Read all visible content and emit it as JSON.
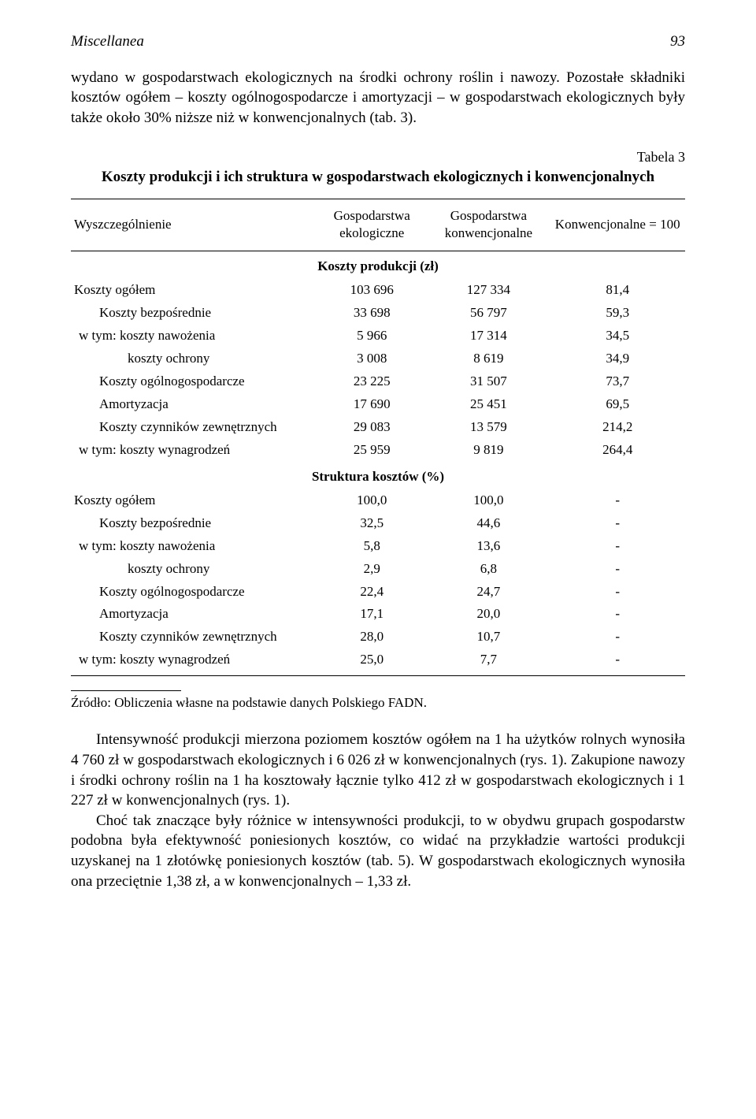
{
  "header": {
    "title": "Miscellanea",
    "page": "93"
  },
  "intro": "wydano w gospodarstwach ekologicznych na środki ochrony roślin i nawozy. Pozostałe składniki kosztów ogółem – koszty ogólnogospodarcze i amortyzacji – w gospodarstwach ekologicznych były także około 30% niższe niż w konwencjonalnych (tab. 3).",
  "table": {
    "label": "Tabela 3",
    "title": "Koszty produkcji i ich struktura w gospodarstwach ekologicznych i konwencjonalnych",
    "columns": {
      "c1": "Wyszczególnienie",
      "c2a": "Gospodarstwa",
      "c2b": "ekologiczne",
      "c3a": "Gospodarstwa",
      "c3b": "konwencjonalne",
      "c4": "Konwencjonalne = 100"
    },
    "section1": {
      "title": "Koszty produkcji (zł)",
      "rows": [
        {
          "label": "Koszty ogółem",
          "indent": "",
          "v1": "103 696",
          "v2": "127 334",
          "v3": "81,4"
        },
        {
          "label": "Koszty bezpośrednie",
          "indent": "indent1",
          "v1": "33 698",
          "v2": "56 797",
          "v3": "59,3"
        },
        {
          "label": "w tym:   koszty nawożenia",
          "indent": "indent2",
          "v1": "5 966",
          "v2": "17 314",
          "v3": "34,5"
        },
        {
          "label": "koszty ochrony",
          "indent": "indent-sub",
          "v1": "3 008",
          "v2": "8 619",
          "v3": "34,9"
        },
        {
          "label": "Koszty ogólnogospodarcze",
          "indent": "indent1",
          "v1": "23 225",
          "v2": "31 507",
          "v3": "73,7"
        },
        {
          "label": "Amortyzacja",
          "indent": "indent1",
          "v1": "17 690",
          "v2": "25 451",
          "v3": "69,5"
        },
        {
          "label": "Koszty czynników zewnętrznych",
          "indent": "indent1",
          "v1": "29 083",
          "v2": "13 579",
          "v3": "214,2"
        },
        {
          "label": "w tym:   koszty wynagrodzeń",
          "indent": "indent2",
          "v1": "25 959",
          "v2": "9 819",
          "v3": "264,4"
        }
      ]
    },
    "section2": {
      "title": "Struktura kosztów (%)",
      "rows": [
        {
          "label": "Koszty ogółem",
          "indent": "",
          "v1": "100,0",
          "v2": "100,0",
          "v3": "-"
        },
        {
          "label": "Koszty bezpośrednie",
          "indent": "indent1",
          "v1": "32,5",
          "v2": "44,6",
          "v3": "-"
        },
        {
          "label": "w tym:   koszty nawożenia",
          "indent": "indent2",
          "v1": "5,8",
          "v2": "13,6",
          "v3": "-"
        },
        {
          "label": "koszty ochrony",
          "indent": "indent-sub",
          "v1": "2,9",
          "v2": "6,8",
          "v3": "-"
        },
        {
          "label": "Koszty ogólnogospodarcze",
          "indent": "indent1",
          "v1": "22,4",
          "v2": "24,7",
          "v3": "-"
        },
        {
          "label": "Amortyzacja",
          "indent": "indent1",
          "v1": "17,1",
          "v2": "20,0",
          "v3": "-"
        },
        {
          "label": "Koszty czynników zewnętrznych",
          "indent": "indent1",
          "v1": "28,0",
          "v2": "10,7",
          "v3": "-"
        },
        {
          "label": "w tym:   koszty wynagrodzeń",
          "indent": "indent2",
          "v1": "25,0",
          "v2": "7,7",
          "v3": "-"
        }
      ]
    }
  },
  "source": "Źródło: Obliczenia własne na podstawie danych Polskiego FADN.",
  "para1": "Intensywność produkcji mierzona poziomem kosztów ogółem na 1 ha użytków rolnych wynosiła 4 760 zł w gospodarstwach ekologicznych i 6 026 zł w konwencjonalnych (rys. 1). Zakupione nawozy i środki ochrony roślin na 1 ha kosztowały łącznie tylko 412 zł w gospodarstwach ekologicznych i 1 227 zł w konwencjonalnych (rys. 1).",
  "para2": "Choć tak znaczące były różnice w intensywności produkcji, to w obydwu grupach gospodarstw podobna była efektywność poniesionych kosztów, co widać na przykładzie wartości produkcji uzyskanej na 1 złotówkę poniesionych kosztów (tab. 5). W gospodarstwach ekologicznych wynosiła ona przeciętnie 1,38 zł, a w konwencjonalnych – 1,33 zł."
}
